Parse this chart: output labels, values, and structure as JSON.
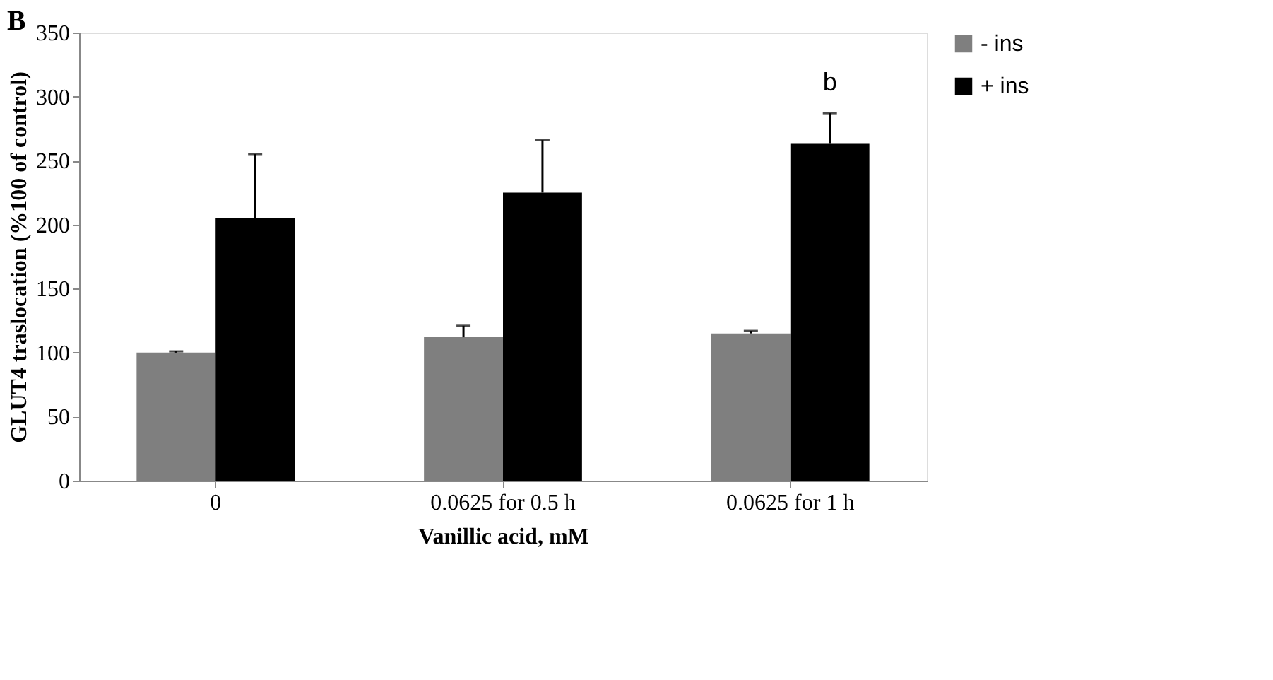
{
  "chart_data": {
    "type": "bar",
    "title": "B",
    "xlabel": "Vanillic acid, mM",
    "ylabel": "GLUT4 traslocation (%100 of control)",
    "categories": [
      "0",
      "0.0625 for 0.5 h",
      "0.0625 for 1 h"
    ],
    "series": [
      {
        "name": "- ins",
        "color": "#7f7f7f",
        "values": [
          100,
          112,
          115
        ],
        "errors": [
          [
            100,
            101
          ],
          [
            112,
            121
          ],
          [
            115,
            117
          ]
        ]
      },
      {
        "name": "+ ins",
        "color": "#000000",
        "values": [
          205,
          225,
          263
        ],
        "errors": [
          [
            205,
            255
          ],
          [
            225,
            266
          ],
          [
            263,
            287
          ]
        ]
      }
    ],
    "ylim": [
      0,
      350
    ],
    "yticks": [
      0,
      50,
      100,
      150,
      200,
      250,
      300,
      350
    ],
    "grid": false,
    "legend": "right",
    "annotations": [
      "b"
    ]
  }
}
